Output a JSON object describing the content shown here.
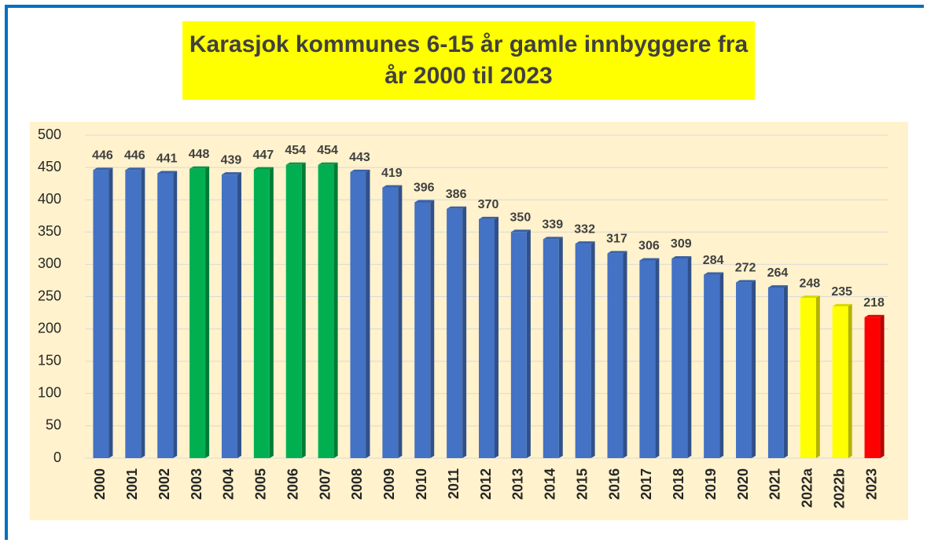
{
  "chart_data": {
    "type": "bar",
    "title": "Karasjok kommunes 6-15 år gamle innbyggere fra år 2000 til 2023",
    "categories": [
      "2000",
      "2001",
      "2002",
      "2003",
      "2004",
      "2005",
      "2006",
      "2007",
      "2008",
      "2009",
      "2010",
      "2011",
      "2012",
      "2013",
      "2014",
      "2015",
      "2016",
      "2017",
      "2018",
      "2019",
      "2020",
      "2021",
      "2022a",
      "2022b",
      "2023"
    ],
    "values": [
      446,
      446,
      441,
      448,
      439,
      447,
      454,
      454,
      443,
      419,
      396,
      386,
      370,
      350,
      339,
      332,
      317,
      306,
      309,
      284,
      272,
      264,
      248,
      235,
      218
    ],
    "colors": [
      "#4472c4",
      "#4472c4",
      "#4472c4",
      "#00b050",
      "#4472c4",
      "#00b050",
      "#00b050",
      "#00b050",
      "#4472c4",
      "#4472c4",
      "#4472c4",
      "#4472c4",
      "#4472c4",
      "#4472c4",
      "#4472c4",
      "#4472c4",
      "#4472c4",
      "#4472c4",
      "#4472c4",
      "#4472c4",
      "#4472c4",
      "#4472c4",
      "#ffff00",
      "#ffff00",
      "#ff0000"
    ],
    "ylim": [
      0,
      500
    ],
    "yticks": [
      0,
      50,
      100,
      150,
      200,
      250,
      300,
      350,
      400,
      450,
      500
    ],
    "grid": true
  }
}
